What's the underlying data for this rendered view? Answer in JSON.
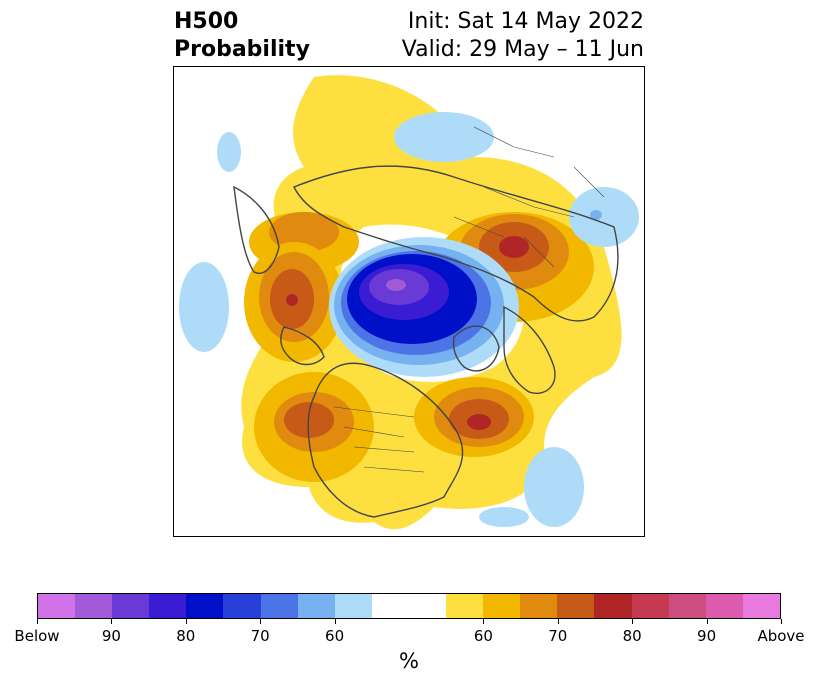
{
  "title": {
    "left_line1": "H500",
    "left_line2": "Probability",
    "right_line1": "Init: Sat 14 May 2022",
    "right_line2": "Valid: 29 May – 11 Jun"
  },
  "colorbar": {
    "colors": [
      "#d272e8",
      "#a25ad8",
      "#6a3ad6",
      "#3a1cd2",
      "#0010c8",
      "#2840d8",
      "#4c74e6",
      "#76b2f0",
      "#aedcf8",
      "#ffffff",
      "#ffffff",
      "#fde040",
      "#f2b800",
      "#e08a10",
      "#c85a18",
      "#b02626",
      "#c43a50",
      "#cc4e80",
      "#dc5cb0",
      "#e87ae0"
    ],
    "labels": [
      "Below",
      "90",
      "80",
      "70",
      "60",
      "60",
      "70",
      "80",
      "90",
      "Above"
    ],
    "units": "%"
  },
  "colors": {
    "above_light": "#fde040",
    "above_mid": "#f2b800",
    "above_orange": "#e08a10",
    "above_deep": "#c85a18",
    "above_red": "#b02626",
    "below_light": "#aedcf8",
    "below_mid": "#76b2f0",
    "below_blue": "#4c74e6",
    "below_deep": "#0010c8",
    "below_purple": "#6a3ad6",
    "coast": "#444444"
  }
}
